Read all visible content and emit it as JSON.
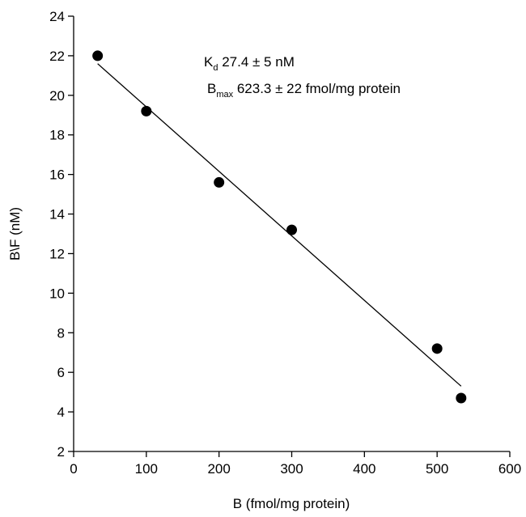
{
  "chart_data": {
    "type": "scatter",
    "xlabel": "B (fmol/mg protein)",
    "ylabel": "B\\F (nM)",
    "xlim": [
      0,
      600
    ],
    "ylim": [
      2,
      24
    ],
    "xticks": [
      0,
      100,
      200,
      300,
      400,
      500,
      600
    ],
    "yticks": [
      2,
      4,
      6,
      8,
      10,
      12,
      14,
      16,
      18,
      20,
      22,
      24
    ],
    "grid": false,
    "points": [
      {
        "x": 33,
        "y": 22.0
      },
      {
        "x": 100,
        "y": 19.2
      },
      {
        "x": 200,
        "y": 15.6
      },
      {
        "x": 300,
        "y": 13.2
      },
      {
        "x": 500,
        "y": 7.2
      },
      {
        "x": 533,
        "y": 4.7
      }
    ],
    "fit_line": {
      "x": [
        33,
        533
      ],
      "y": [
        21.6,
        5.3
      ]
    },
    "annotations": {
      "kd_main": "K",
      "kd_sub": "d",
      "kd_text": " 27.4 ± 5 nM",
      "bmax_main": "B",
      "bmax_sub": "max",
      "bmax_text": " 623.3 ± 22 fmol/mg protein"
    }
  }
}
